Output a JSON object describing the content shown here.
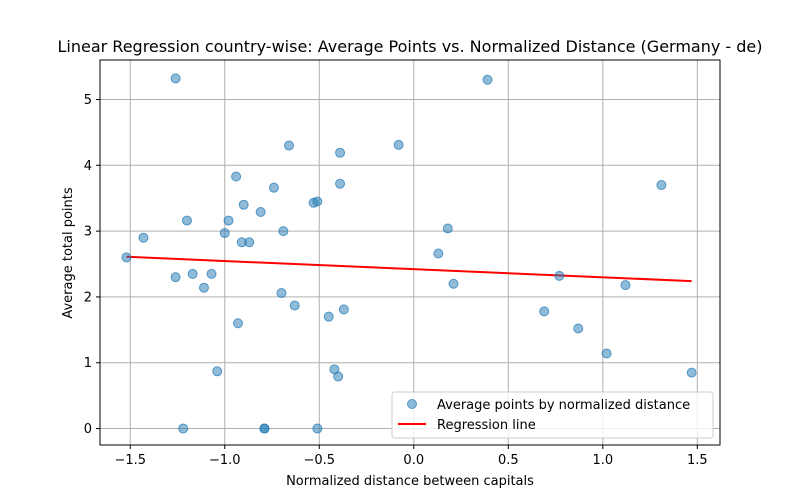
{
  "chart_data": {
    "type": "scatter",
    "title": "Linear Regression country-wise: Average Points vs. Normalized Distance (Germany - de)",
    "xlabel": "Normalized distance between capitals",
    "ylabel": "Average total points",
    "xlim": [
      -1.66,
      1.62
    ],
    "ylim": [
      -0.25,
      5.6
    ],
    "xticks": [
      -1.5,
      -1.0,
      -0.5,
      0.0,
      0.5,
      1.0,
      1.5
    ],
    "xtick_labels": [
      "−1.5",
      "−1.0",
      "−0.5",
      "0.0",
      "0.5",
      "1.0",
      "1.5"
    ],
    "yticks": [
      0,
      1,
      2,
      3,
      4,
      5
    ],
    "ytick_labels": [
      "0",
      "1",
      "2",
      "3",
      "4",
      "5"
    ],
    "grid": true,
    "legend_position": "lower-right",
    "series": [
      {
        "name": "Average points by normalized distance",
        "kind": "scatter",
        "color": "#1f77b4",
        "points": [
          [
            -1.52,
            2.6
          ],
          [
            -1.43,
            2.9
          ],
          [
            -1.26,
            5.32
          ],
          [
            -1.26,
            2.3
          ],
          [
            -1.22,
            0.0
          ],
          [
            -1.2,
            3.16
          ],
          [
            -1.17,
            2.35
          ],
          [
            -1.11,
            2.14
          ],
          [
            -1.07,
            2.35
          ],
          [
            -1.04,
            0.87
          ],
          [
            -1.0,
            2.97
          ],
          [
            -0.98,
            3.16
          ],
          [
            -0.94,
            3.83
          ],
          [
            -0.93,
            1.6
          ],
          [
            -0.91,
            2.83
          ],
          [
            -0.9,
            3.4
          ],
          [
            -0.87,
            2.83
          ],
          [
            -0.81,
            3.29
          ],
          [
            -0.79,
            0.0
          ],
          [
            -0.79,
            0.0
          ],
          [
            -0.74,
            3.66
          ],
          [
            -0.7,
            2.06
          ],
          [
            -0.69,
            3.0
          ],
          [
            -0.66,
            4.3
          ],
          [
            -0.63,
            1.87
          ],
          [
            -0.53,
            3.43
          ],
          [
            -0.51,
            3.45
          ],
          [
            -0.51,
            0.0
          ],
          [
            -0.45,
            1.7
          ],
          [
            -0.42,
            0.9
          ],
          [
            -0.4,
            0.79
          ],
          [
            -0.39,
            4.19
          ],
          [
            -0.39,
            3.72
          ],
          [
            -0.37,
            1.81
          ],
          [
            -0.08,
            4.31
          ],
          [
            0.13,
            2.66
          ],
          [
            0.18,
            3.04
          ],
          [
            0.21,
            2.2
          ],
          [
            0.39,
            5.3
          ],
          [
            0.69,
            1.78
          ],
          [
            0.77,
            2.32
          ],
          [
            0.87,
            1.52
          ],
          [
            1.02,
            1.14
          ],
          [
            1.12,
            2.18
          ],
          [
            1.31,
            3.7
          ],
          [
            1.47,
            0.85
          ]
        ]
      },
      {
        "name": "Regression line",
        "kind": "line",
        "color": "#ff0000",
        "points": [
          [
            -1.52,
            2.61
          ],
          [
            1.47,
            2.24
          ]
        ]
      }
    ]
  }
}
